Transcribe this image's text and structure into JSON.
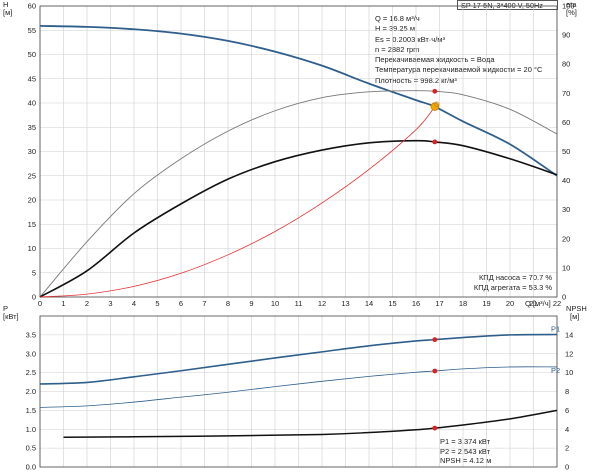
{
  "header": {
    "pump": "SP 17-5N, 3*400 V, 50Hz"
  },
  "info": [
    "Q = 16.8 м³/ч",
    "H = 39.25 м",
    "Es = 0.2003 кВт·ч/м³",
    "n = 2882 rpm",
    "Перекачиваемая жидкость = Вода",
    "Температура перекачиваемой жидкости = 20 °C",
    "Плотность = 998.2 кг/м³"
  ],
  "top_readout": [
    "КПД насоса = 70.7 %",
    "КПД агрегата = 53.3 %"
  ],
  "bottom_readout": [
    "P1 = 3.374 кВт",
    "P2 = 2.543 кВт",
    "NPSH = 4.12 м"
  ],
  "colors": {
    "head": "#2e5e8c",
    "eff": "#e83030",
    "black": "#111111",
    "grid": "#cfcfcf",
    "point": "#e02020",
    "op": "#f2a900"
  },
  "chart_data": [
    {
      "type": "line",
      "name": "head-efficiency",
      "left_axis": {
        "label": "H",
        "unit": "[м]",
        "min": 0,
        "max": 60,
        "ticks": [
          0,
          5,
          10,
          15,
          20,
          25,
          30,
          35,
          40,
          45,
          50,
          55,
          60
        ]
      },
      "right_axis": {
        "label": "eta",
        "unit": "[%]",
        "min": 0,
        "max": 100,
        "ticks": [
          0,
          10,
          20,
          30,
          40,
          50,
          60,
          70,
          80,
          90,
          100
        ]
      },
      "x_axis": {
        "label": "Q [м³/ч]",
        "min": 0,
        "max": 22,
        "ticks": [
          0,
          1,
          2,
          3,
          4,
          5,
          6,
          7,
          8,
          9,
          10,
          11,
          12,
          13,
          14,
          15,
          16,
          17,
          18,
          19,
          20,
          21,
          22
        ]
      },
      "grid": true,
      "series": [
        {
          "key": "head",
          "axis": "left",
          "x": [
            0,
            2,
            4,
            6,
            8,
            10,
            12,
            14,
            16,
            16.8,
            18,
            20,
            22
          ],
          "y": [
            55.9,
            55.7,
            55.2,
            54.3,
            52.8,
            50.6,
            47.7,
            44.0,
            40.6,
            39.25,
            36.2,
            31.5,
            25.0
          ]
        },
        {
          "key": "pump_eff",
          "axis": "right",
          "x": [
            0,
            2,
            4,
            6,
            8,
            10,
            12,
            14,
            16,
            16.8,
            18,
            20,
            22
          ],
          "y": [
            0,
            19,
            35.5,
            47.5,
            57,
            64,
            68.5,
            70.5,
            70.9,
            70.7,
            69.5,
            64.5,
            56
          ]
        },
        {
          "key": "unit_eff",
          "axis": "right",
          "x": [
            0,
            2,
            4,
            6,
            8,
            10,
            12,
            14,
            16,
            16.8,
            18,
            20,
            22
          ],
          "y": [
            0,
            9,
            22,
            32,
            40.5,
            46.5,
            50.5,
            53,
            53.7,
            53.3,
            52,
            47.5,
            42
          ]
        },
        {
          "key": "system",
          "axis": "left",
          "x": [
            0,
            2,
            4,
            6,
            8,
            10,
            12,
            14,
            16,
            16.8
          ],
          "y": [
            0,
            0.6,
            2.2,
            4.9,
            8.7,
            13.5,
            19.4,
            26.3,
            34.5,
            39.25
          ]
        }
      ],
      "operating_point": {
        "x": 16.8,
        "y": 39.25
      },
      "markers": [
        {
          "x": 16.8,
          "y": 70.7,
          "axis": "right"
        },
        {
          "x": 16.8,
          "y": 53.3,
          "axis": "right"
        }
      ]
    },
    {
      "type": "line",
      "name": "power-npsh",
      "left_axis": {
        "label": "P",
        "unit": "[кВт]",
        "min": 0,
        "max": 4,
        "ticks": [
          "0.0",
          "0.5",
          "1.0",
          "1.5",
          "2.0",
          "2.5",
          "3.0",
          "3.5"
        ]
      },
      "right_axis": {
        "label": "NPSH",
        "unit": "[м]",
        "min": 0,
        "max": 16,
        "ticks": [
          0,
          2,
          4,
          6,
          8,
          10,
          12,
          14
        ]
      },
      "grid": true,
      "series": [
        {
          "key": "p1",
          "name": "P1",
          "axis": "left",
          "x": [
            0,
            2,
            4,
            6,
            8,
            10,
            12,
            14,
            16,
            16.8,
            18,
            20,
            22
          ],
          "y": [
            2.2,
            2.24,
            2.39,
            2.55,
            2.72,
            2.89,
            3.05,
            3.21,
            3.34,
            3.374,
            3.43,
            3.5,
            3.51
          ]
        },
        {
          "key": "p2",
          "name": "P2",
          "axis": "left",
          "x": [
            0,
            2,
            4,
            6,
            8,
            10,
            12,
            14,
            16,
            16.8,
            18,
            20,
            22
          ],
          "y": [
            1.58,
            1.62,
            1.72,
            1.85,
            1.98,
            2.13,
            2.27,
            2.4,
            2.51,
            2.543,
            2.6,
            2.65,
            2.65
          ]
        },
        {
          "key": "npsh",
          "axis": "right",
          "x": [
            1,
            4,
            8,
            12,
            14,
            16,
            16.8,
            18,
            20,
            22
          ],
          "y": [
            3.15,
            3.2,
            3.3,
            3.45,
            3.65,
            3.95,
            4.12,
            4.45,
            5.1,
            6.0
          ]
        }
      ],
      "markers": [
        {
          "x": 16.8,
          "y": 3.374,
          "axis": "left"
        },
        {
          "x": 16.8,
          "y": 2.543,
          "axis": "left"
        },
        {
          "x": 16.8,
          "y": 4.12,
          "axis": "right"
        }
      ]
    }
  ]
}
